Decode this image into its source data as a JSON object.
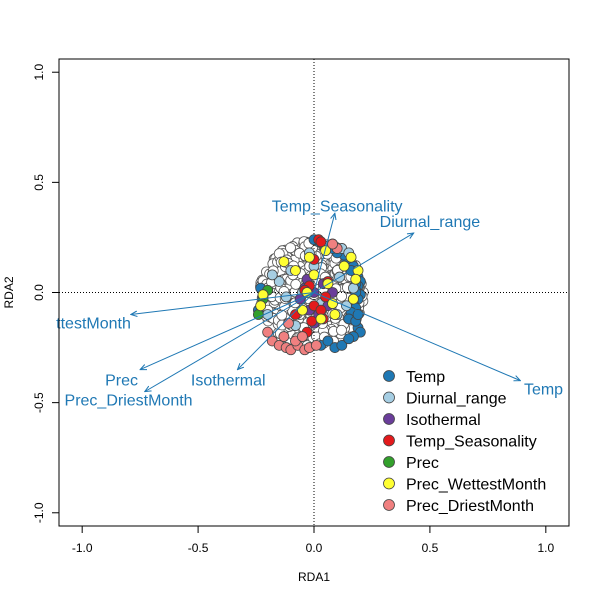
{
  "chart_data": {
    "type": "scatter",
    "title": "",
    "xlabel": "RDA1",
    "ylabel": "RDA2",
    "xlim": [
      -1.1,
      1.1
    ],
    "ylim": [
      -1.06,
      1.06
    ],
    "xticks": [
      -1.0,
      -0.5,
      0.0,
      0.5,
      1.0
    ],
    "yticks": [
      -1.0,
      -0.5,
      0.0,
      0.5,
      1.0
    ],
    "xtick_labels": [
      "-1.0",
      "-0.5",
      "0.0",
      "0.5",
      "1.0"
    ],
    "ytick_labels": [
      "-1.0",
      "-0.5",
      "0.0",
      "0.5",
      "1.0"
    ],
    "grid": false,
    "reference_lines": {
      "x": 0,
      "y": 0,
      "style": "dotted"
    },
    "sample_color": "#ffffff",
    "sample_outline": "#555555",
    "vector_color": "#1f78b4",
    "biplot_vectors": [
      {
        "name": "Temp",
        "x": 0.89,
        "y": -0.4
      },
      {
        "name": "Diurnal_range",
        "x": 0.43,
        "y": 0.27
      },
      {
        "name": "Isothermal",
        "x": -0.33,
        "y": -0.35
      },
      {
        "name": "Temp_Seasonality",
        "x": 0.09,
        "y": 0.36
      },
      {
        "name": "Prec",
        "x": -0.75,
        "y": -0.35
      },
      {
        "name": "Prec_WettestMonth",
        "x": -0.79,
        "y": -0.1
      },
      {
        "name": "Prec_DriestMonth",
        "x": -0.73,
        "y": -0.45
      }
    ],
    "biplot_labels": [
      {
        "text": "Temp",
        "x": 0.99,
        "y": -0.44,
        "anchor": "middle"
      },
      {
        "text": "Diurnal_range",
        "x": 0.5,
        "y": 0.32,
        "anchor": "middle"
      },
      {
        "text": "Isothermal",
        "x": -0.37,
        "y": -0.4,
        "anchor": "middle"
      },
      {
        "text": "Temp_Seasonality",
        "x": 0.1,
        "y": 0.39,
        "anchor": "middle"
      },
      {
        "text": "Prec",
        "x": -0.83,
        "y": -0.4,
        "anchor": "middle"
      },
      {
        "text": "Prec_DriestMonth",
        "x": -0.8,
        "y": -0.49,
        "anchor": "middle"
      },
      {
        "text": "ttestMonth",
        "x": -0.79,
        "y": -0.14,
        "anchor": "end"
      }
    ],
    "legend": {
      "position": "bottom-right",
      "entries": [
        {
          "label": "Temp",
          "color": "#1f78b4"
        },
        {
          "label": "Diurnal_range",
          "color": "#a6cee3"
        },
        {
          "label": "Isothermal",
          "color": "#6a3d9a"
        },
        {
          "label": "Temp_Seasonality",
          "color": "#e31a1c"
        },
        {
          "label": "Prec",
          "color": "#33a02c"
        },
        {
          "label": "Prec_WettestMonth",
          "color": "#ffff33"
        },
        {
          "label": "Prec_DriestMonth",
          "color": "#f08080"
        }
      ]
    },
    "series": [
      {
        "name": "Temp",
        "color": "#1f78b4",
        "x": [
          0.17,
          0.18,
          0.19,
          0.2,
          0.19,
          0.18,
          0.2,
          0.19,
          0.17,
          0.18,
          0.16,
          0.15,
          0.19,
          0.2,
          0.17,
          0.18,
          0.14,
          0.16,
          0.18,
          0.13,
          0.1,
          0.08,
          0.05,
          0.02,
          0.0,
          0.03,
          0.06,
          0.09,
          0.12,
          0.15,
          -0.23,
          -0.22,
          -0.24,
          0.18,
          0.19
        ],
        "y": [
          0.12,
          0.09,
          0.07,
          0.05,
          0.03,
          0.01,
          -0.01,
          -0.03,
          -0.05,
          -0.07,
          -0.09,
          -0.12,
          -0.16,
          -0.18,
          -0.2,
          -0.13,
          0.15,
          0.1,
          0.0,
          0.17,
          0.18,
          0.2,
          0.21,
          0.23,
          0.24,
          -0.24,
          -0.22,
          -0.25,
          -0.24,
          -0.21,
          0.02,
          -0.02,
          -0.08,
          0.04,
          -0.1
        ]
      },
      {
        "name": "Diurnal_range",
        "color": "#a6cee3",
        "x": [
          0.05,
          0.08,
          0.12,
          0.15,
          -0.1,
          -0.15,
          -0.05,
          0.03,
          0.1,
          -0.2,
          -0.18,
          0.17,
          -0.08,
          0.0,
          0.11,
          0.14,
          -0.12,
          -0.02
        ],
        "y": [
          0.21,
          0.22,
          0.2,
          0.18,
          0.1,
          0.05,
          0.0,
          -0.05,
          -0.1,
          -0.1,
          0.08,
          0.02,
          -0.15,
          0.12,
          0.07,
          -0.06,
          -0.02,
          0.18
        ]
      },
      {
        "name": "Isothermal",
        "color": "#6a3d9a",
        "x": [
          -0.06,
          0.0,
          0.04,
          -0.02,
          0.02,
          -0.04,
          0.06,
          0.0,
          -0.03,
          0.08
        ],
        "y": [
          -0.03,
          0.0,
          0.04,
          -0.08,
          -0.1,
          0.02,
          -0.06,
          -0.14,
          0.06,
          0.0
        ]
      },
      {
        "name": "Temp_Seasonality",
        "color": "#e31a1c",
        "x": [
          0.02,
          0.03,
          -0.02,
          -0.04,
          0.0,
          -0.08,
          0.04,
          -0.01,
          0.03,
          0.06,
          0.0,
          0.05,
          -0.03
        ],
        "y": [
          0.24,
          0.23,
          0.03,
          0.01,
          -0.06,
          -0.1,
          -0.12,
          -0.13,
          -0.08,
          0.05,
          0.15,
          -0.02,
          -0.18
        ]
      },
      {
        "name": "Prec",
        "color": "#33a02c",
        "x": [
          -0.24,
          -0.22,
          -0.2
        ],
        "y": [
          -0.1,
          -0.03,
          0.01
        ]
      },
      {
        "name": "Prec_WettestMonth",
        "color": "#ffff33",
        "x": [
          -0.02,
          0.0,
          0.06,
          -0.03,
          0.16,
          0.19,
          0.18,
          0.08,
          0.09,
          -0.22,
          -0.05,
          0.05,
          -0.13,
          0.03,
          0.13,
          -0.08,
          -0.23,
          0.17
        ],
        "y": [
          0.16,
          0.08,
          0.04,
          0.0,
          0.16,
          0.1,
          0.06,
          -0.05,
          -0.1,
          -0.01,
          -0.08,
          0.19,
          0.14,
          -0.12,
          0.12,
          0.1,
          -0.06,
          -0.03
        ]
      },
      {
        "name": "Prec_DriestMonth",
        "color": "#f08080",
        "x": [
          -0.18,
          -0.15,
          -0.12,
          -0.1,
          -0.07,
          -0.04,
          -0.02,
          0.01,
          -0.08,
          -0.05,
          -0.13,
          -0.2,
          0.1,
          0.08,
          -0.11
        ],
        "y": [
          -0.22,
          -0.24,
          -0.25,
          -0.26,
          -0.24,
          -0.26,
          -0.25,
          -0.24,
          -0.22,
          -0.2,
          -0.2,
          -0.18,
          0.2,
          0.22,
          -0.14
        ]
      }
    ]
  }
}
